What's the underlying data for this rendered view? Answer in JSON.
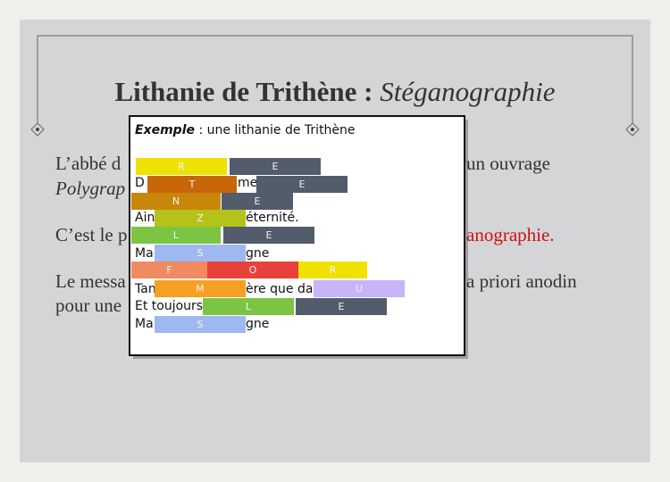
{
  "slide": {
    "title": {
      "main": "Lithanie de Trithène :",
      "italic": "Stéganographie"
    },
    "body": [
      "L’abbé d",
      "un ouvrage",
      "Polygrap",
      "C’est le p",
      "anographie.",
      "Le messa",
      "a priori anodin",
      "pour une"
    ],
    "popup": {
      "heading": {
        "bold": "Exemple",
        "rest": " : une lithanie de Trithène"
      },
      "lines": [
        "D",
        "me",
        "Ain",
        "éternité.",
        "Ma",
        "gne",
        "Tan",
        "ère que dan",
        "Et toujours",
        "Ma",
        "gne"
      ],
      "blocks": [
        {
          "letter": "R",
          "color": "#f0e200"
        },
        {
          "letter": "E",
          "color": "#525c6b"
        },
        {
          "letter": "T",
          "color": "#c8660a"
        },
        {
          "letter": "E",
          "color": "#525c6b"
        },
        {
          "letter": "N",
          "color": "#c8870a"
        },
        {
          "letter": "E",
          "color": "#525c6b"
        },
        {
          "letter": "Z",
          "color": "#b5c21a"
        },
        {
          "letter": "L",
          "color": "#7cc443"
        },
        {
          "letter": "E",
          "color": "#525c6b"
        },
        {
          "letter": "S",
          "color": "#a0b8f0"
        },
        {
          "letter": "F",
          "color": "#f08a60"
        },
        {
          "letter": "O",
          "color": "#e8403a"
        },
        {
          "letter": "R",
          "color": "#f0e200"
        },
        {
          "letter": "M",
          "color": "#f5a020"
        },
        {
          "letter": "U",
          "color": "#c8b4f8"
        },
        {
          "letter": "L",
          "color": "#7cc443"
        },
        {
          "letter": "E",
          "color": "#525c6b"
        },
        {
          "letter": "S",
          "color": "#a0b8f0"
        }
      ]
    }
  }
}
